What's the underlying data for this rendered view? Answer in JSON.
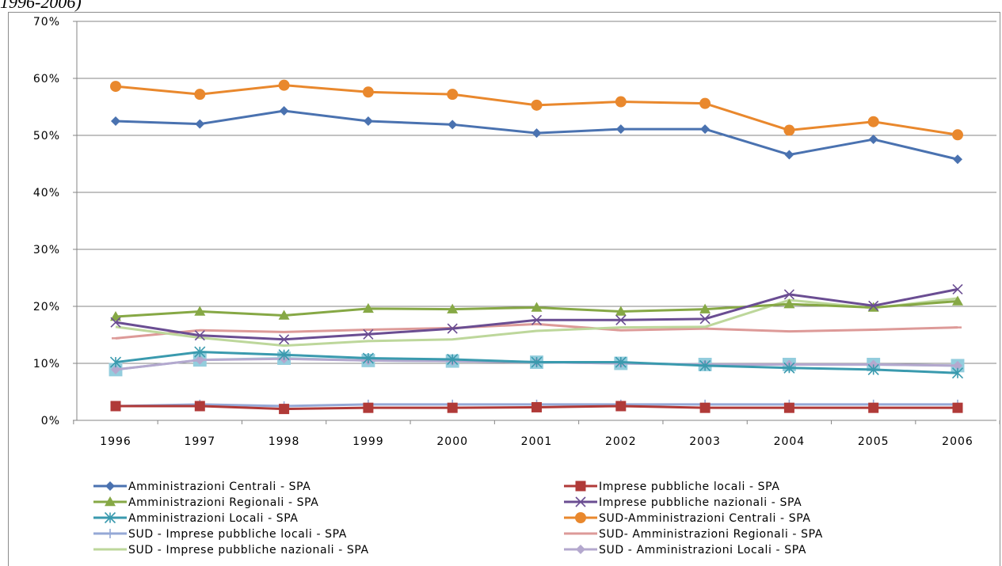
{
  "caption": "1996-2006)",
  "chart_data": {
    "type": "line",
    "title": "",
    "xlabel": "",
    "ylabel": "",
    "x": [
      "1996",
      "1997",
      "1998",
      "1999",
      "2000",
      "2001",
      "2002",
      "2003",
      "2004",
      "2005",
      "2006"
    ],
    "ylim": [
      0,
      70
    ],
    "yticks": [
      "0%",
      "10%",
      "20%",
      "30%",
      "40%",
      "50%",
      "60%",
      "70%"
    ],
    "grid": "horizontal",
    "legend_position": "bottom",
    "series": [
      {
        "name": "Amministrazioni Centrali - SPA",
        "color": "#4a72b0",
        "marker": "diamond",
        "values": [
          52.5,
          52.0,
          54.3,
          52.5,
          51.9,
          50.4,
          51.1,
          51.1,
          46.6,
          49.3,
          45.8
        ]
      },
      {
        "name": "Imprese pubbliche locali - SPA",
        "color": "#b03a38",
        "marker": "square",
        "values": [
          2.5,
          2.5,
          2.0,
          2.2,
          2.2,
          2.3,
          2.5,
          2.2,
          2.2,
          2.2,
          2.2
        ]
      },
      {
        "name": "Amministrazioni Regionali - SPA",
        "color": "#86a845",
        "marker": "triangle",
        "values": [
          18.2,
          19.1,
          18.4,
          19.6,
          19.5,
          19.8,
          19.1,
          19.5,
          20.4,
          19.8,
          20.9
        ]
      },
      {
        "name": "Imprese pubbliche nazionali - SPA",
        "color": "#6a4d92",
        "marker": "x",
        "values": [
          17.2,
          14.9,
          14.2,
          15.1,
          16.1,
          17.6,
          17.6,
          17.8,
          22.1,
          20.1,
          23.0
        ]
      },
      {
        "name": "Amministrazioni Locali - SPA",
        "color": "#3a9aae",
        "marker": "asterisk",
        "values": [
          10.2,
          12.0,
          11.5,
          10.9,
          10.7,
          10.2,
          10.2,
          9.6,
          9.2,
          8.9,
          8.3
        ]
      },
      {
        "name": "SUD-Amministrazioni Centrali - SPA",
        "color": "#e9882d",
        "marker": "circle",
        "values": [
          58.6,
          57.2,
          58.8,
          57.6,
          57.2,
          55.3,
          55.9,
          55.6,
          50.9,
          52.4,
          50.1
        ]
      },
      {
        "name": "SUD - Imprese pubbliche locali - SPA",
        "color": "#95a8d6",
        "marker": "plus",
        "values": [
          2.5,
          2.8,
          2.5,
          2.8,
          2.8,
          2.8,
          2.8,
          2.8,
          2.8,
          2.8,
          2.8
        ]
      },
      {
        "name": "SUD- Amministrazioni Regionali - SPA",
        "color": "#dd9a98",
        "marker": "dash",
        "values": [
          14.4,
          15.8,
          15.5,
          15.9,
          16.2,
          16.9,
          15.8,
          16.1,
          15.6,
          15.9,
          16.3
        ]
      },
      {
        "name": "SUD - Imprese pubbliche nazionali - SPA",
        "color": "#bdd79b",
        "marker": "none",
        "values": [
          16.4,
          14.5,
          13.1,
          13.9,
          14.2,
          15.7,
          16.3,
          16.4,
          21.1,
          19.7,
          21.4
        ]
      },
      {
        "name": "SUD - Amministrazioni Locali - SPA",
        "color": "#b4a8ce",
        "marker": "diamond",
        "values": [
          8.9,
          10.6,
          10.8,
          10.5,
          10.4,
          10.2,
          10.0,
          9.8,
          9.8,
          9.8,
          9.6
        ]
      },
      {
        "name": "",
        "color": "#93cddd",
        "marker": "square",
        "values": [
          8.9,
          10.6,
          10.9,
          10.5,
          10.4,
          10.2,
          10.0,
          9.8,
          9.8,
          9.8,
          9.6
        ]
      }
    ]
  }
}
